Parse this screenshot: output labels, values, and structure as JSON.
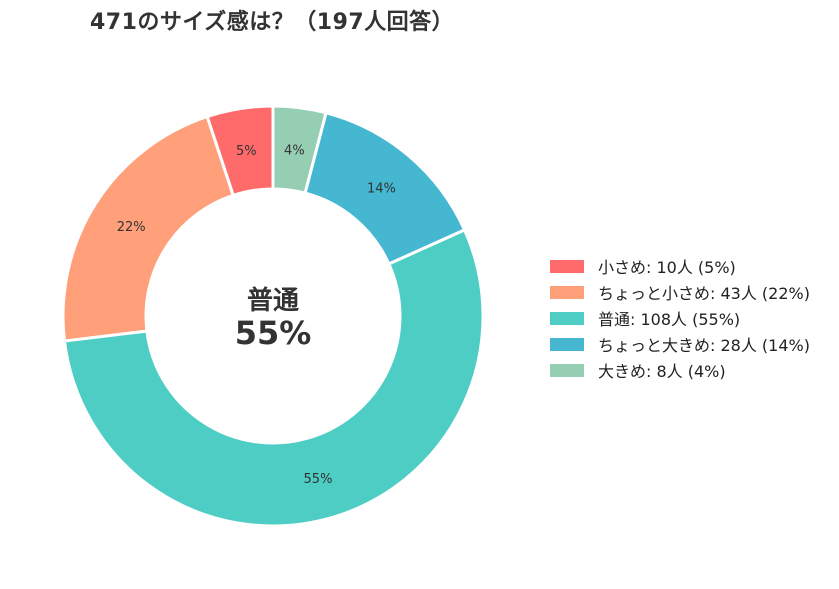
{
  "chart_data": {
    "type": "pie",
    "title": "471のサイズ感は？（197人回答）",
    "center_label": {
      "line1": "普通",
      "line2": "55%"
    },
    "slices": [
      {
        "label": "小さめ",
        "count": 10,
        "percent": 5,
        "legend": "小さめ:  10人 (5%)",
        "color": "#FF6B6B"
      },
      {
        "label": "ちょっと小さめ",
        "count": 43,
        "percent": 22,
        "legend": "ちょっと小さめ:  43人 (22%)",
        "color": "#FFA07A"
      },
      {
        "label": "普通",
        "count": 108,
        "percent": 55,
        "legend": "普通:  108人 (55%)",
        "color": "#4ECDC4"
      },
      {
        "label": "ちょっと大きめ",
        "count": 28,
        "percent": 14,
        "legend": "ちょっと大きめ:  28人 (14%)",
        "color": "#45B7D1"
      },
      {
        "label": "大きめ",
        "count": 8,
        "percent": 4,
        "legend": "大きめ:  8人 (4%)",
        "color": "#96CEB4"
      }
    ],
    "pct_labels": [
      "5%",
      "22%",
      "55%",
      "14%",
      "4%"
    ],
    "start_angle": "top",
    "direction": "counterclockwise",
    "legend_position": "right"
  }
}
